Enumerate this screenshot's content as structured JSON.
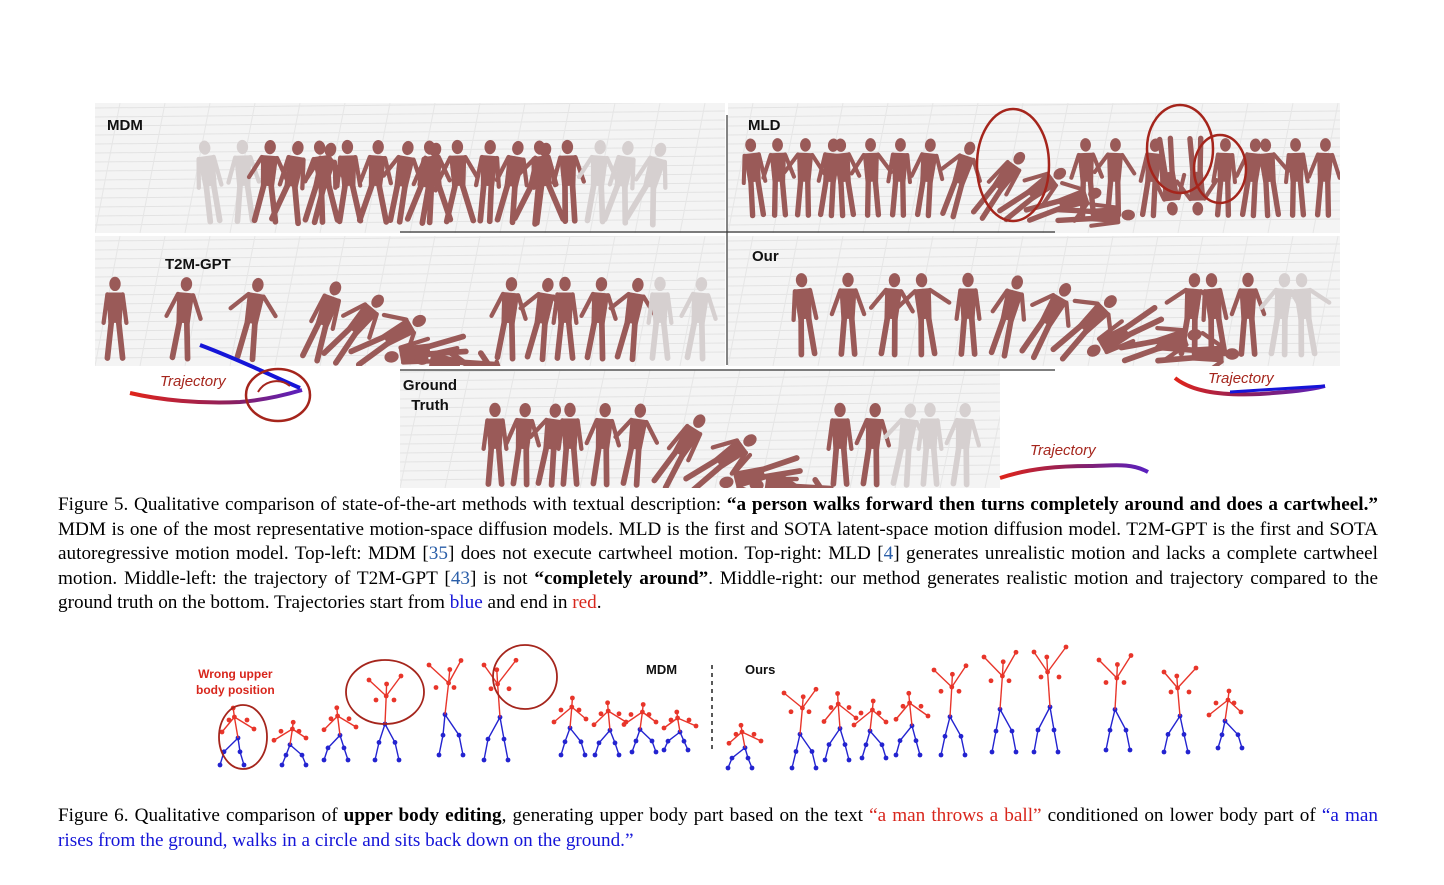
{
  "figure5": {
    "panels": {
      "mdm": "MDM",
      "mld": "MLD",
      "t2mgpt": "T2M-GPT",
      "our": "Our",
      "gt_line1": "Ground",
      "gt_line2": "Truth"
    },
    "trajectory_label": "Trajectory",
    "caption": {
      "prefix": "Figure 5. Qualitative comparison of state-of-the-art methods with textual description: ",
      "quote": "“a person walks forward then turns completely around and does a cartwheel.”",
      "s1": " MDM is one of the most representative motion-space diffusion models. MLD is the first and SOTA latent-space motion diffusion model. T2M-GPT is the first and SOTA autoregressive motion model. Top-left: MDM [",
      "ref1": "35",
      "s2": "] does not execute cartwheel motion. Top-right: MLD [",
      "ref2": "4",
      "s3": "] generates unrealistic motion and lacks a complete cartwheel motion. Middle-left: the trajectory of T2M-GPT [",
      "ref3": "43",
      "s4": "] is not ",
      "bold2": "“completely around”",
      "s5": ". Middle-right: our method generates realistic motion and trajectory compared to the ground truth on the bottom. Trajectories start from ",
      "blue_word": "blue",
      "s6": " and end in ",
      "red_word": "red",
      "s7": "."
    }
  },
  "figure6": {
    "annotation_line1": "Wrong upper",
    "annotation_line2": "body position",
    "mdm_label": "MDM",
    "ours_label": "Ours",
    "caption": {
      "prefix": "Figure 6. Qualitative comparison of ",
      "bold": "upper body editing",
      "s1": ", generating upper body part based on the text ",
      "red_text": "“a man throws a ball”",
      "s2": " conditioned on lower body part of ",
      "blue_text": "“a man rises from the ground, walks in a circle and sits back down on the ground.”"
    }
  },
  "colors": {
    "body": "#9a5a58",
    "ghost": "#d6d0d0",
    "traj_red": "#d8261c",
    "traj_blue": "#1515d8",
    "circle": "#a5251c",
    "skeleton_upper": "#e8352a",
    "skeleton_lower": "#2323d0"
  }
}
